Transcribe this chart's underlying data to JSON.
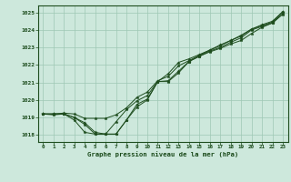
{
  "title": "Graphe pression niveau de la mer (hPa)",
  "background_color": "#cde8dc",
  "grid_color": "#9ec8b4",
  "line_color": "#1e4d1e",
  "text_color": "#1a4a1a",
  "xlim_min": -0.5,
  "xlim_max": 23.5,
  "ylim_min": 1017.6,
  "ylim_max": 1025.4,
  "yticks": [
    1018,
    1019,
    1020,
    1021,
    1022,
    1023,
    1024,
    1025
  ],
  "xticks": [
    0,
    1,
    2,
    3,
    4,
    5,
    6,
    7,
    8,
    9,
    10,
    11,
    12,
    13,
    14,
    15,
    16,
    17,
    18,
    19,
    20,
    21,
    22,
    23
  ],
  "series": [
    [
      1019.2,
      1019.2,
      1019.2,
      1018.85,
      1018.15,
      1018.05,
      1018.05,
      1018.05,
      1018.85,
      1019.6,
      1020.0,
      1021.05,
      1021.05,
      1021.55,
      1022.2,
      1022.5,
      1022.75,
      1022.95,
      1023.2,
      1023.4,
      1023.8,
      1024.15,
      1024.4,
      1024.9
    ],
    [
      1019.2,
      1019.15,
      1019.2,
      1019.0,
      1018.7,
      1018.15,
      1018.05,
      1018.75,
      1019.45,
      1019.95,
      1020.25,
      1021.05,
      1021.5,
      1022.15,
      1022.35,
      1022.6,
      1022.85,
      1023.1,
      1023.4,
      1023.65,
      1024.05,
      1024.25,
      1024.45,
      1025.05
    ],
    [
      1019.2,
      1019.2,
      1019.25,
      1019.2,
      1018.95,
      1018.95,
      1018.95,
      1019.15,
      1019.55,
      1020.15,
      1020.45,
      1021.1,
      1021.35,
      1021.95,
      1022.25,
      1022.55,
      1022.85,
      1023.15,
      1023.4,
      1023.7,
      1024.05,
      1024.3,
      1024.5,
      1025.05
    ],
    [
      1019.2,
      1019.2,
      1019.2,
      1019.0,
      1018.6,
      1018.05,
      1018.05,
      1018.05,
      1018.85,
      1019.75,
      1020.05,
      1021.05,
      1021.1,
      1021.65,
      1022.2,
      1022.5,
      1022.8,
      1023.0,
      1023.3,
      1023.55,
      1024.0,
      1024.2,
      1024.4,
      1024.95
    ]
  ]
}
